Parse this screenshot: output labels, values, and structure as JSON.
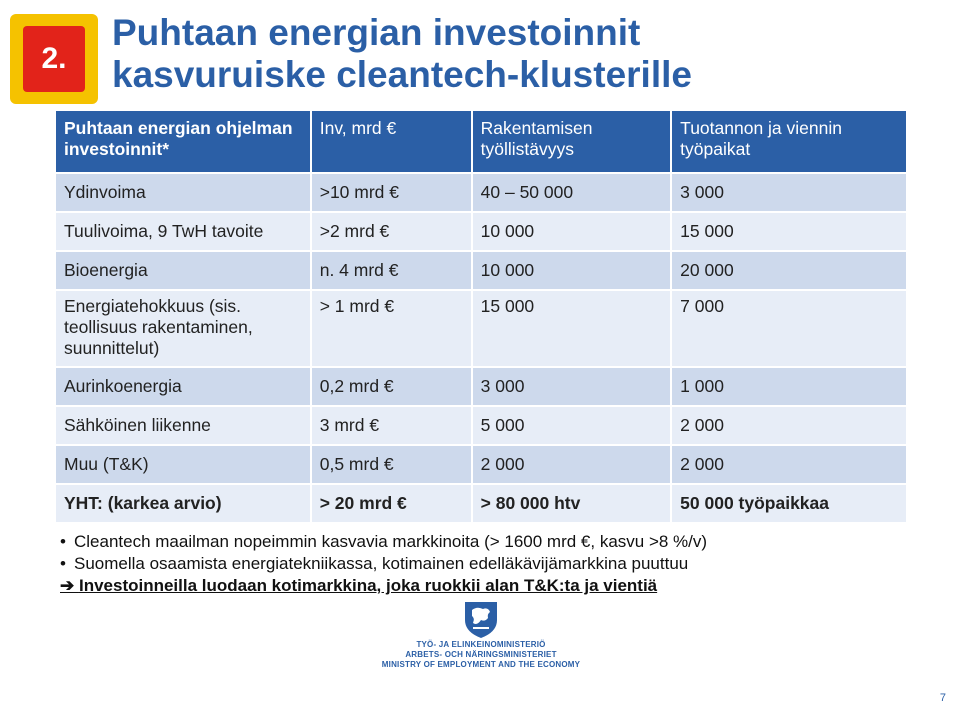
{
  "badge": {
    "number": "2."
  },
  "title": {
    "line1": "Puhtaan energian investoinnit",
    "line2": "kasvuruiske cleantech-klusterille"
  },
  "table": {
    "headers": [
      "Puhtaan energian ohjelman investoinnit*",
      "Inv, mrd €",
      "Rakentamisen työllistävyys",
      "Tuotannon ja viennin työpaikat"
    ],
    "rows": [
      [
        "Ydinvoima",
        ">10 mrd €",
        "40 – 50 000",
        "3 000"
      ],
      [
        "Tuulivoima, 9 TwH tavoite",
        ">2 mrd €",
        "10 000",
        "15 000"
      ],
      [
        "Bioenergia",
        "n. 4 mrd €",
        "10 000",
        "20 000"
      ],
      [
        "Energiatehokkuus (sis. teollisuus rakentaminen, suunnittelut)",
        "> 1 mrd €",
        "15 000",
        "7 000"
      ],
      [
        "Aurinkoenergia",
        "0,2 mrd €",
        "3 000",
        "1 000"
      ],
      [
        "Sähköinen liikenne",
        "3 mrd €",
        "5 000",
        "2 000"
      ],
      [
        "Muu (T&K)",
        "0,5 mrd €",
        "2 000",
        "2 000"
      ]
    ],
    "total": [
      "YHT: (karkea arvio)",
      "> 20 mrd €",
      "> 80 000 htv",
      "50 000 työpaikkaa"
    ]
  },
  "bullets": [
    "Cleantech maailman nopeimmin kasvavia markkinoita (> 1600 mrd €, kasvu >8 %/v)",
    "Suomella osaamista energiatekniikassa, kotimainen edelläkävijämarkkina puuttuu"
  ],
  "arrow_line": "Investoinneilla luodaan kotimarkkina, joka ruokkii alan T&K:ta ja vientiä",
  "logo": {
    "line1": "TYÖ- JA ELINKEINOMINISTERIÖ",
    "line2": "ARBETS- OCH NÄRINGSMINISTERIET",
    "line3": "MINISTRY OF EMPLOYMENT AND THE ECONOMY"
  },
  "page_number": "7",
  "colors": {
    "accent": "#2b5fa6",
    "row_dark": "#cdd9ec",
    "row_light": "#e7edf7",
    "badge_outer": "#f5c200",
    "badge_inner": "#e2231a"
  }
}
